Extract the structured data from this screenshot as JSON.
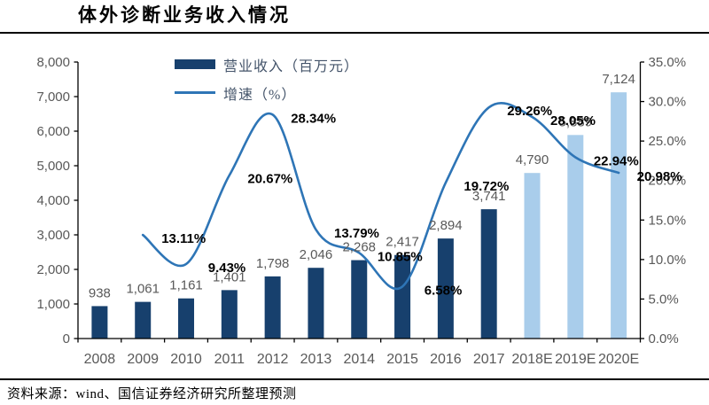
{
  "chart_data": {
    "type": "bar",
    "title": "体外诊断业务收入情况",
    "categories": [
      "2008",
      "2009",
      "2010",
      "2011",
      "2012",
      "2013",
      "2014",
      "2015",
      "2016",
      "2017",
      "2018E",
      "2019E",
      "2020E"
    ],
    "series": [
      {
        "name": "营业收入（百万元）",
        "type": "bar",
        "axis": "left",
        "values": [
          938,
          1061,
          1161,
          1401,
          1798,
          2046,
          2268,
          2417,
          2894,
          3741,
          4790,
          5889,
          7124
        ],
        "labels": [
          "938",
          "1,061",
          "1,161",
          "1,401",
          "1,798",
          "2,046",
          "2,268",
          "2,417",
          "2,894",
          "3,741",
          "4,790",
          "5,889",
          "7,124"
        ],
        "color": "#17406D",
        "forecast_color": "#A9CDEB",
        "forecast_from_index": 10
      },
      {
        "name": "增速（%）",
        "type": "line",
        "axis": "right",
        "values": [
          null,
          13.11,
          9.43,
          20.67,
          28.34,
          13.79,
          10.85,
          6.58,
          19.72,
          29.26,
          28.05,
          22.94,
          20.98
        ],
        "labels": [
          null,
          "13.11%",
          "9.43%",
          "20.67%",
          "28.34%",
          "13.79%",
          "10.85%",
          "6.58%",
          "19.72%",
          "29.26%",
          "28.05%",
          "22.94%",
          "20.98%"
        ],
        "color": "#2E75B6"
      }
    ],
    "left_axis": {
      "min": 0,
      "max": 8000,
      "step": 1000,
      "tick_labels": [
        "0",
        "1,000",
        "2,000",
        "3,000",
        "4,000",
        "5,000",
        "6,000",
        "7,000",
        "8,000"
      ]
    },
    "right_axis": {
      "min": 0,
      "max": 35,
      "step": 5,
      "tick_labels": [
        "0.0%",
        "5.0%",
        "10.0%",
        "15.0%",
        "20.0%",
        "25.0%",
        "30.0%",
        "35.0%"
      ]
    },
    "legend_position": "top-center",
    "grid": false
  },
  "footer": {
    "source": "资料来源：wind、国信证券经济研究所整理预测"
  },
  "colors": {
    "axis_line": "#000000",
    "axis_text": "#595959",
    "growth_label_text": "#000000",
    "legend_text": "#44546A"
  }
}
